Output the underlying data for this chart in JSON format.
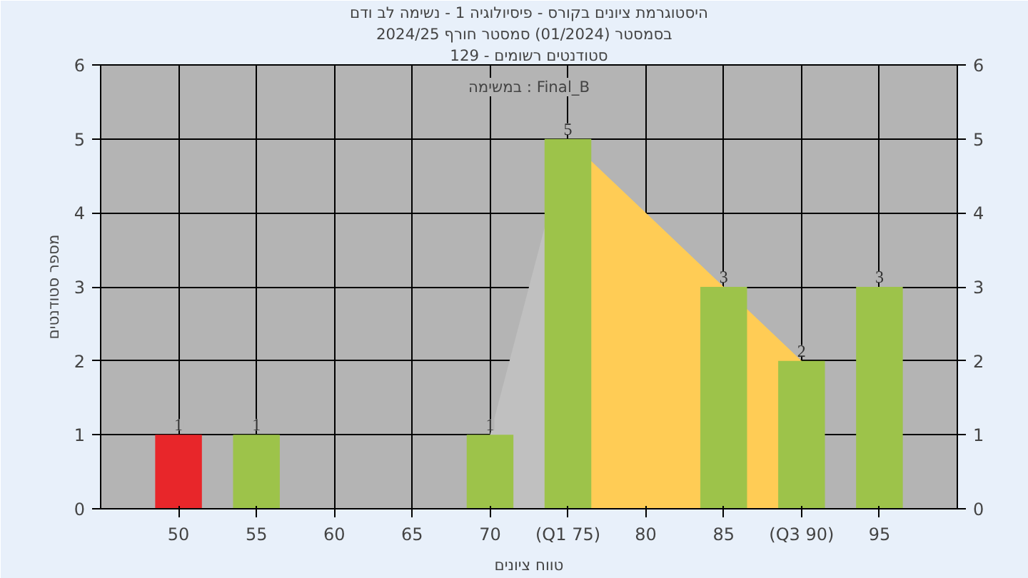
{
  "chart_data": {
    "type": "bar",
    "title": "היסטוגרמת ציונים בקורס - פיסיולוגיה 1 - נשימה לב ודם",
    "subtitle": "בסמסטר  (01/2024)  סמסטר חורף 2024/25",
    "xlabel": "טווח ציונים",
    "ylabel": "מספר סטודנטים",
    "annotations": [
      "סטודנטים רשומים - 129",
      "במשימה : Final_B"
    ],
    "xlim": [
      45,
      100
    ],
    "xticks": [
      50,
      55,
      60,
      65,
      70,
      {
        "value": 75,
        "label": "(Q1 75)"
      },
      80,
      85,
      {
        "value": 90,
        "label": "(Q3 90)"
      },
      95
    ],
    "ylim": [
      0,
      6
    ],
    "yticks": [
      0,
      1,
      2,
      3,
      4,
      5,
      6
    ],
    "y2lim": [
      0,
      6
    ],
    "y2ticks": [
      0,
      1,
      2,
      3,
      4,
      5,
      6
    ],
    "grid": true,
    "series": [
      {
        "type": "area",
        "color": "#c0c0c0",
        "x": [
          70,
          75
        ],
        "values": [
          1,
          5
        ]
      },
      {
        "type": "area",
        "color": "#ffcc55",
        "x": [
          75,
          80,
          85,
          90
        ],
        "values": [
          5,
          4,
          3,
          2
        ]
      },
      {
        "x": [
          50,
          55,
          70,
          75,
          85,
          90,
          95
        ],
        "values": [
          1,
          1,
          1,
          5,
          3,
          2,
          3
        ],
        "colors": [
          "#e8262a",
          "#9dc34a",
          "#9dc34a",
          "#9dc34a",
          "#9dc34a",
          "#9dc34a",
          "#9dc34a"
        ],
        "data_labels": true
      }
    ]
  }
}
